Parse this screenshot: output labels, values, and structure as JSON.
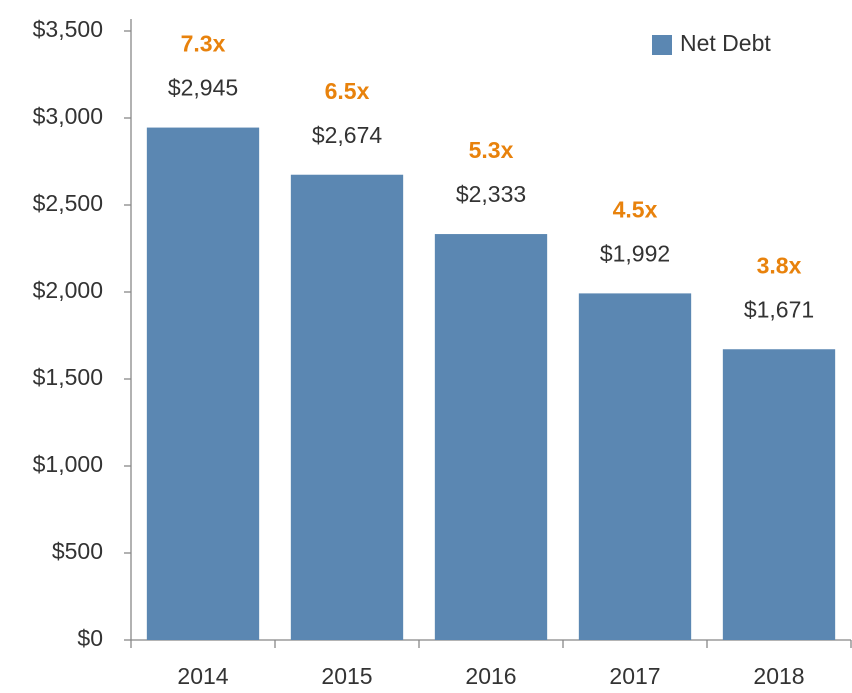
{
  "chart_data": {
    "type": "bar",
    "categories": [
      "2014",
      "2015",
      "2016",
      "2017",
      "2018"
    ],
    "series": [
      {
        "name": "Net Debt",
        "color": "#5b87b2",
        "values": [
          2945,
          2674,
          2333,
          1992,
          1671
        ],
        "value_labels": [
          "$2,945",
          "$2,674",
          "$2,333",
          "$1,992",
          "$1,671"
        ]
      }
    ],
    "annotations": [
      "7.3x",
      "6.5x",
      "5.3x",
      "4.5x",
      "3.8x"
    ],
    "annotation_color": "#e8820c",
    "ylim": [
      0,
      3500
    ],
    "yticks": [
      {
        "value": 0,
        "label": "$0"
      },
      {
        "value": 500,
        "label": "$500"
      },
      {
        "value": 1000,
        "label": "$1,000"
      },
      {
        "value": 1500,
        "label": "$1,500"
      },
      {
        "value": 2000,
        "label": "$2,000"
      },
      {
        "value": 2500,
        "label": "$2,500"
      },
      {
        "value": 3000,
        "label": "$3,000"
      },
      {
        "value": 3500,
        "label": "$3,500"
      }
    ],
    "grid": false,
    "legend": "upper right"
  }
}
